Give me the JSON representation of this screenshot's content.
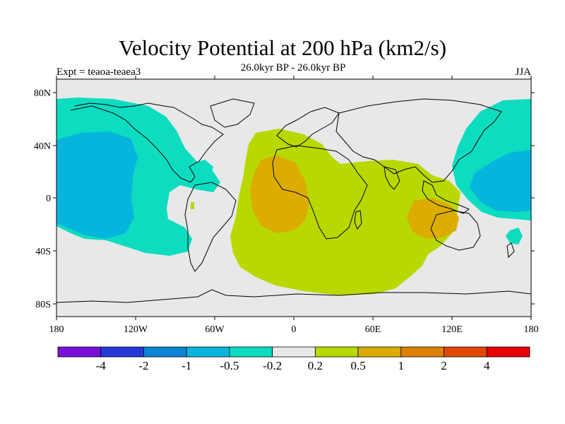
{
  "title": "Velocity Potential at 200 hPa (km2/s)",
  "subtitle": "26.0kyr BP - 26.0kyr BP",
  "left_label": "Expt = teaoa-teaea3",
  "right_label": "JJA",
  "map": {
    "lon_ticks": [
      "180",
      "120W",
      "60W",
      "0",
      "60E",
      "120E",
      "180"
    ],
    "lat_ticks": [
      "80N",
      "40N",
      "0",
      "40S",
      "80S"
    ]
  },
  "colorbar": {
    "colors": [
      "#7a10d8",
      "#2438d8",
      "#0a84d6",
      "#06b5dc",
      "#0cdcc0",
      "#e8e8e8",
      "#b8d800",
      "#dcac00",
      "#e08000",
      "#e04800",
      "#e80000"
    ],
    "labels": [
      "-4",
      "-2",
      "-1",
      "-0.5",
      "-0.2",
      "0.2",
      "0.5",
      "1",
      "2",
      "4"
    ]
  }
}
